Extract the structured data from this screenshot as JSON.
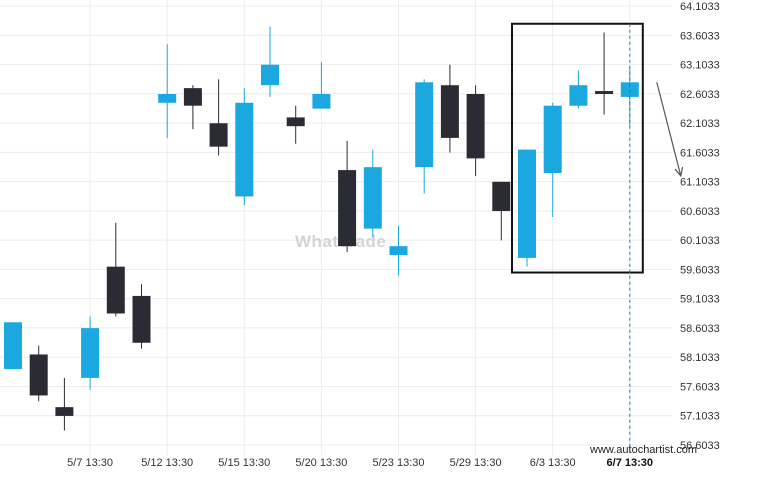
{
  "chart_data": {
    "type": "candlestick",
    "y_ticks": [
      "64.1033",
      "63.6033",
      "63.1033",
      "62.6033",
      "62.1033",
      "61.6033",
      "61.1033",
      "60.6033",
      "60.1033",
      "59.6033",
      "59.1033",
      "58.6033",
      "58.1033",
      "57.6033",
      "57.1033",
      "56.6033"
    ],
    "x_ticks": [
      "5/7 13:30",
      "5/12 13:30",
      "5/15 13:30",
      "5/20 13:30",
      "5/23 13:30",
      "5/29 13:30",
      "6/3 13:30",
      "6/7 13:30"
    ],
    "x_tick_candle_index": [
      3,
      6,
      9,
      12,
      15,
      18,
      21,
      24
    ],
    "highlighted_tick": "6/7 13:30",
    "ylim": [
      56.6033,
      64.1033
    ],
    "bull_color": "#1ba7e0",
    "bear_color": "#2b2b33",
    "candles": [
      {
        "o": 57.9,
        "h": 58.7,
        "l": 57.9,
        "c": 58.7
      },
      {
        "o": 58.15,
        "h": 58.3,
        "l": 57.35,
        "c": 57.45
      },
      {
        "o": 57.25,
        "h": 57.75,
        "l": 56.85,
        "c": 57.1
      },
      {
        "o": 57.75,
        "h": 58.8,
        "l": 57.55,
        "c": 58.6
      },
      {
        "o": 59.65,
        "h": 60.4,
        "l": 58.8,
        "c": 58.85
      },
      {
        "o": 59.15,
        "h": 59.35,
        "l": 58.25,
        "c": 58.35
      },
      {
        "o": 62.45,
        "h": 63.45,
        "l": 61.85,
        "c": 62.6
      },
      {
        "o": 62.7,
        "h": 62.75,
        "l": 62.0,
        "c": 62.4
      },
      {
        "o": 62.1,
        "h": 62.85,
        "l": 61.55,
        "c": 61.7
      },
      {
        "o": 60.85,
        "h": 62.7,
        "l": 60.7,
        "c": 62.45
      },
      {
        "o": 62.75,
        "h": 63.75,
        "l": 62.55,
        "c": 63.1
      },
      {
        "o": 62.2,
        "h": 62.4,
        "l": 61.75,
        "c": 62.05
      },
      {
        "o": 62.35,
        "h": 63.15,
        "l": 62.35,
        "c": 62.6
      },
      {
        "o": 61.3,
        "h": 61.8,
        "l": 59.9,
        "c": 60.0
      },
      {
        "o": 60.3,
        "h": 61.65,
        "l": 60.15,
        "c": 61.35
      },
      {
        "o": 59.85,
        "h": 60.35,
        "l": 59.5,
        "c": 60.0
      },
      {
        "o": 61.35,
        "h": 62.85,
        "l": 60.9,
        "c": 62.8
      },
      {
        "o": 62.75,
        "h": 63.1,
        "l": 61.6,
        "c": 61.85
      },
      {
        "o": 62.6,
        "h": 62.75,
        "l": 61.2,
        "c": 61.5
      },
      {
        "o": 61.1,
        "h": 61.1,
        "l": 60.1,
        "c": 60.6
      },
      {
        "o": 59.8,
        "h": 61.65,
        "l": 59.65,
        "c": 61.65
      },
      {
        "o": 61.25,
        "h": 62.45,
        "l": 60.5,
        "c": 62.4
      },
      {
        "o": 62.4,
        "h": 63.0,
        "l": 62.35,
        "c": 62.75
      },
      {
        "o": 62.65,
        "h": 63.65,
        "l": 62.25,
        "c": 62.6
      },
      {
        "o": 62.55,
        "h": 63.05,
        "l": 62.05,
        "c": 62.8
      }
    ],
    "highlight_box": {
      "from_candle": 20,
      "to_candle": 24,
      "y_low": 59.55,
      "y_high": 63.8
    },
    "projection_arrow": {
      "from_y": 62.8,
      "to_y": 61.2
    },
    "current_time_marker_candle": 24,
    "grid": true,
    "watermark": "WhatTrade",
    "credit": "www.autochartist.com"
  }
}
